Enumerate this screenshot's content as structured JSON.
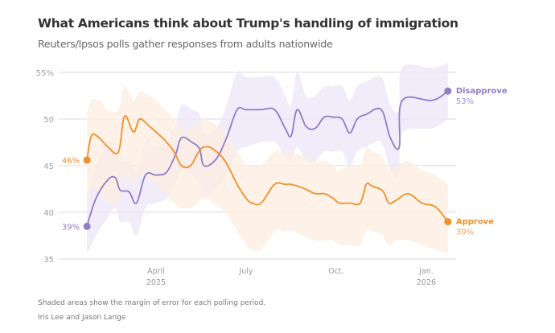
{
  "header": {
    "title": "What Americans think about Trump's handling of immigration",
    "subtitle": "Reuters/Ipsos polls gather responses from adults nationwide"
  },
  "footer": {
    "note": "Shaded areas show the margin of error for each polling period.",
    "credit": "Iris Lee and Jason Lange"
  },
  "chart_data": {
    "type": "line",
    "title": "What Americans think about Trump's handling of immigration",
    "subtitle": "Reuters/Ipsos polls gather responses from adults nationwide",
    "xlabel": "",
    "ylabel": "",
    "x_unit": "months since Jan. 1, 2025",
    "xlim": [
      0.7,
      12.72
    ],
    "ylim": [
      35,
      55
    ],
    "grid": true,
    "y_ticks": [
      {
        "value": 35,
        "label": "35"
      },
      {
        "value": 40,
        "label": "40"
      },
      {
        "value": 45,
        "label": "45"
      },
      {
        "value": 50,
        "label": "50"
      },
      {
        "value": 55,
        "label": "55%"
      }
    ],
    "x_ticks": [
      {
        "value": 3,
        "label": "April",
        "sublabel": "2025"
      },
      {
        "value": 6,
        "label": "July",
        "sublabel": ""
      },
      {
        "value": 9,
        "label": "Oct.",
        "sublabel": ""
      },
      {
        "value": 12,
        "label": "Jan.",
        "sublabel": "2026"
      }
    ],
    "legend": "direct-labels-right",
    "series": [
      {
        "name": "Disapprove",
        "color": "#8f7dc6",
        "band_color": "#ebe6f7",
        "start_label": "39%",
        "end_label": "53%",
        "x": [
          0.7,
          1.0,
          1.4,
          1.65,
          1.8,
          2.1,
          2.35,
          2.65,
          3.0,
          3.35,
          3.65,
          3.85,
          4.2,
          4.45,
          4.6,
          5.0,
          5.35,
          5.7,
          6.0,
          6.5,
          6.95,
          7.3,
          7.5,
          7.7,
          8.0,
          8.3,
          8.6,
          8.9,
          9.2,
          9.45,
          9.7,
          10.0,
          10.5,
          10.8,
          11.1,
          11.2,
          12.2,
          12.72
        ],
        "y": [
          38.5,
          41.5,
          43.5,
          43.7,
          42.4,
          42.2,
          41.0,
          44.0,
          44.0,
          44.3,
          46.2,
          48.0,
          47.5,
          46.8,
          45.0,
          45.7,
          48.0,
          51.0,
          51.0,
          51.0,
          51.0,
          49.0,
          48.2,
          51.0,
          49.2,
          49.0,
          50.2,
          50.2,
          50.0,
          48.5,
          50.0,
          50.5,
          51.0,
          48.0,
          47.0,
          52.0,
          52.0,
          53.0
        ],
        "band_low": [
          35.5,
          37.5,
          39.5,
          40.5,
          39.0,
          39.0,
          37.5,
          40.5,
          41.0,
          41.5,
          43.0,
          44.5,
          44.0,
          43.0,
          41.5,
          42.5,
          44.0,
          46.5,
          47.0,
          47.5,
          47.5,
          46.0,
          45.5,
          47.0,
          45.5,
          45.5,
          46.5,
          46.5,
          46.5,
          45.0,
          46.5,
          47.0,
          47.5,
          44.5,
          44.0,
          48.5,
          49.0,
          50.0
        ],
        "band_high": [
          41.5,
          45.0,
          47.5,
          47.0,
          45.5,
          45.5,
          44.5,
          47.5,
          47.0,
          47.5,
          49.5,
          51.5,
          51.0,
          50.5,
          48.5,
          49.0,
          51.5,
          55.0,
          54.5,
          54.5,
          54.5,
          52.5,
          51.5,
          55.0,
          52.5,
          52.5,
          53.5,
          53.5,
          53.5,
          52.0,
          53.5,
          54.0,
          54.5,
          51.5,
          51.0,
          55.5,
          55.5,
          56.0
        ]
      },
      {
        "name": "Approve",
        "color": "#f0902a",
        "band_color": "#fdeee0",
        "start_label": "46%",
        "end_label": "39%",
        "x": [
          0.7,
          0.85,
          1.1,
          1.4,
          1.75,
          1.95,
          2.25,
          2.45,
          2.75,
          3.0,
          3.3,
          3.6,
          3.85,
          4.15,
          4.4,
          4.6,
          4.9,
          5.3,
          5.7,
          6.0,
          6.2,
          6.5,
          6.95,
          7.3,
          7.5,
          7.9,
          8.3,
          8.6,
          8.9,
          9.1,
          9.45,
          9.8,
          10.0,
          10.2,
          10.55,
          10.75,
          11.0,
          11.4,
          11.85,
          12.3,
          12.72
        ],
        "y": [
          45.6,
          48.2,
          48.0,
          47.0,
          46.5,
          50.3,
          48.6,
          50.0,
          49.3,
          48.6,
          47.7,
          46.5,
          45.0,
          45.0,
          46.4,
          47.0,
          46.8,
          45.5,
          43.0,
          41.5,
          41.0,
          41.0,
          43.0,
          43.0,
          43.0,
          42.6,
          42.0,
          42.0,
          41.5,
          41.0,
          41.0,
          41.0,
          43.0,
          42.8,
          42.3,
          41.0,
          41.3,
          42.0,
          41.0,
          40.6,
          39.0
        ],
        "band_low": [
          39.5,
          42.5,
          42.0,
          41.0,
          41.0,
          44.0,
          43.0,
          44.0,
          43.5,
          43.0,
          42.0,
          41.0,
          40.5,
          40.5,
          41.0,
          41.5,
          41.0,
          40.0,
          38.0,
          36.5,
          36.0,
          36.0,
          38.0,
          38.0,
          38.0,
          37.5,
          37.0,
          37.0,
          37.0,
          36.5,
          36.5,
          36.5,
          38.0,
          38.0,
          37.5,
          36.5,
          37.0,
          37.0,
          36.5,
          36.0,
          35.5
        ],
        "band_high": [
          50.5,
          52.0,
          52.0,
          51.0,
          51.0,
          53.5,
          52.0,
          53.0,
          52.5,
          52.0,
          51.0,
          50.0,
          49.0,
          49.0,
          49.5,
          50.0,
          49.5,
          48.5,
          46.5,
          45.0,
          45.0,
          45.0,
          46.5,
          46.5,
          46.5,
          46.0,
          45.5,
          45.5,
          45.0,
          44.5,
          45.0,
          45.0,
          47.0,
          46.5,
          46.0,
          44.5,
          45.0,
          45.5,
          44.5,
          44.0,
          43.0
        ]
      }
    ]
  }
}
